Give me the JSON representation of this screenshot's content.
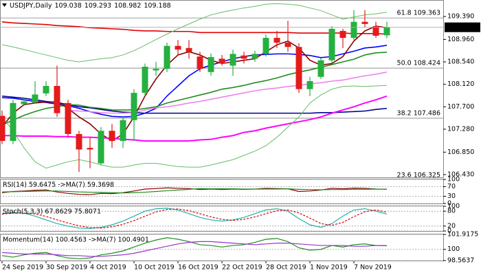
{
  "chart_data": [
    {
      "type": "candlestick",
      "title": "USDJPY,Daily",
      "categories": [
        "24 Sep 2019",
        null,
        null,
        null,
        "30 Sep 2019",
        null,
        null,
        null,
        "4 Oct 2019",
        null,
        null,
        null,
        "10 Oct 2019",
        null,
        null,
        null,
        "16 Oct 2019",
        null,
        null,
        null,
        "22 Oct 2019",
        null,
        null,
        null,
        "28 Oct 2019",
        null,
        null,
        null,
        "1 Nov 2019",
        null,
        null,
        null,
        "7 Nov 2019",
        null,
        null,
        null
      ],
      "open": [
        107.53,
        107.06,
        107.75,
        107.78,
        107.95,
        108.09,
        107.77,
        107.19,
        106.93,
        106.64,
        107.25,
        107.06,
        107.45,
        107.96,
        108.38,
        108.41,
        108.84,
        108.8,
        108.64,
        108.35,
        108.6,
        108.47,
        108.66,
        108.6,
        108.69,
        108.99,
        108.9,
        108.82,
        108.03,
        108.26,
        108.57,
        109.12,
        108.99,
        109.29,
        109.21,
        109.038
      ],
      "high": [
        107.63,
        107.83,
        107.86,
        108.18,
        108.18,
        108.47,
        107.83,
        107.25,
        107.12,
        107.32,
        107.38,
        107.51,
        108.03,
        108.51,
        108.54,
        108.9,
        108.95,
        108.95,
        108.73,
        108.7,
        108.67,
        108.77,
        108.73,
        108.75,
        109.05,
        109.12,
        109.31,
        108.89,
        108.26,
        108.61,
        109.21,
        109.16,
        109.51,
        109.51,
        109.29,
        109.293
      ],
      "low": [
        107.0,
        107.0,
        107.72,
        107.76,
        107.9,
        107.51,
        107.12,
        106.48,
        106.55,
        106.61,
        106.93,
        106.93,
        107.06,
        107.9,
        108.28,
        108.35,
        108.67,
        108.6,
        108.35,
        108.28,
        108.47,
        108.28,
        108.51,
        108.54,
        108.64,
        108.8,
        108.73,
        107.96,
        107.9,
        108.22,
        108.51,
        108.8,
        108.95,
        109.18,
        108.99,
        108.982
      ],
      "close": [
        107.06,
        107.77,
        107.8,
        107.93,
        108.09,
        107.58,
        107.19,
        106.9,
        106.9,
        107.25,
        107.06,
        107.45,
        107.96,
        108.45,
        108.41,
        108.84,
        108.77,
        108.73,
        108.41,
        108.63,
        108.51,
        108.69,
        108.6,
        108.69,
        108.99,
        108.9,
        108.82,
        108.03,
        108.18,
        108.57,
        109.16,
        108.99,
        109.29,
        109.25,
        109.03,
        109.188
      ],
      "up_color": "#25b040",
      "down_color": "#e31b1b",
      "series": [
        {
          "color": "#e00000",
          "width": 1.6,
          "values": [
            109.29,
            109.27,
            109.26,
            109.25,
            109.24,
            109.22,
            109.21,
            109.2,
            109.18,
            109.17,
            109.16,
            109.15,
            109.13,
            109.12,
            109.12,
            109.11,
            109.11,
            109.11,
            109.09,
            109.09,
            109.09,
            109.09,
            109.09,
            109.09,
            109.09,
            109.09,
            109.09,
            109.08,
            109.08,
            109.08,
            109.08,
            109.08,
            109.07,
            109.07,
            109.07,
            109.06
          ]
        },
        {
          "color": "#00008b",
          "width": 1.6,
          "values": [
            107.9,
            107.88,
            107.86,
            107.83,
            107.8,
            107.78,
            107.74,
            107.7,
            107.68,
            107.65,
            107.62,
            107.6,
            107.59,
            107.58,
            107.58,
            107.58,
            107.58,
            107.58,
            107.58,
            107.58,
            107.58,
            107.58,
            107.58,
            107.58,
            107.58,
            107.58,
            107.58,
            107.58,
            107.58,
            107.59,
            107.59,
            107.6,
            107.61,
            107.62,
            107.65,
            107.67
          ]
        },
        {
          "color": "#0000ff",
          "width": 1.6,
          "values": [
            107.87,
            107.86,
            107.83,
            107.8,
            107.78,
            107.75,
            107.72,
            107.67,
            107.61,
            107.56,
            107.52,
            107.51,
            107.52,
            107.58,
            107.67,
            107.9,
            108.09,
            108.28,
            108.41,
            108.48,
            108.54,
            108.6,
            108.64,
            108.67,
            108.68,
            108.69,
            108.69,
            108.68,
            108.66,
            108.62,
            108.64,
            108.69,
            108.74,
            108.8,
            108.82,
            108.85
          ]
        },
        {
          "color": "#1e8c1e",
          "width": 1.6,
          "values": [
            107.36,
            107.45,
            107.54,
            107.61,
            107.67,
            107.7,
            107.74,
            107.73,
            107.69,
            107.67,
            107.64,
            107.64,
            107.64,
            107.67,
            107.7,
            107.77,
            107.82,
            107.87,
            107.92,
            107.97,
            108.03,
            108.06,
            108.1,
            108.15,
            108.19,
            108.24,
            108.3,
            108.35,
            108.39,
            108.44,
            108.49,
            108.54,
            108.59,
            108.67,
            108.71,
            108.72
          ]
        },
        {
          "color": "#8b0000",
          "width": 1.6,
          "values": [
            107.32,
            107.58,
            107.74,
            107.77,
            107.79,
            107.79,
            107.67,
            107.51,
            107.38,
            107.19,
            107.06,
            107.19,
            107.51,
            107.9,
            108.22,
            108.48,
            108.67,
            108.73,
            108.67,
            108.57,
            108.51,
            108.54,
            108.57,
            108.6,
            108.73,
            108.86,
            108.93,
            108.8,
            108.57,
            108.48,
            108.51,
            108.64,
            108.93,
            109.12,
            109.21,
            109.18
          ]
        },
        {
          "color": "#ff00ff",
          "width": 2,
          "values": [
            107.16,
            107.16,
            107.15,
            107.15,
            107.15,
            107.14,
            107.14,
            107.13,
            107.13,
            107.12,
            107.11,
            107.09,
            107.08,
            107.06,
            107.06,
            107.06,
            107.06,
            107.06,
            107.08,
            107.09,
            107.13,
            107.16,
            107.22,
            107.25,
            107.3,
            107.34,
            107.38,
            107.42,
            107.46,
            107.51,
            107.58,
            107.64,
            107.7,
            107.77,
            107.83,
            107.9
          ]
        },
        {
          "color": "#ee82ee",
          "width": 1.6,
          "values": [
            null,
            null,
            null,
            null,
            null,
            null,
            107.64,
            107.62,
            107.61,
            107.59,
            107.58,
            107.58,
            107.59,
            107.64,
            107.68,
            107.7,
            107.73,
            107.77,
            107.8,
            107.84,
            107.88,
            107.92,
            107.96,
            108.0,
            108.03,
            108.05,
            108.08,
            108.1,
            108.13,
            108.15,
            108.18,
            108.2,
            108.24,
            108.28,
            108.31,
            108.35
          ]
        },
        {
          "color": "#66bb66",
          "width": 1,
          "values": [
            108.86,
            108.82,
            108.77,
            108.72,
            108.67,
            108.62,
            108.57,
            108.54,
            108.57,
            108.6,
            108.62,
            108.67,
            108.75,
            108.85,
            108.96,
            109.06,
            109.16,
            109.25,
            109.34,
            109.42,
            109.47,
            109.51,
            109.55,
            109.58,
            109.62,
            109.63,
            109.62,
            109.6,
            109.55,
            109.5,
            109.42,
            109.34,
            109.38,
            109.42,
            109.44,
            109.47
          ]
        },
        {
          "color": "#66bb66",
          "width": 1,
          "values": [
            107.51,
            107.25,
            106.93,
            106.67,
            106.55,
            106.61,
            106.67,
            106.71,
            106.67,
            106.61,
            106.57,
            106.57,
            106.61,
            106.64,
            106.64,
            106.61,
            106.58,
            106.57,
            106.57,
            106.61,
            106.66,
            106.71,
            106.79,
            106.87,
            106.97,
            107.13,
            107.32,
            107.51,
            107.77,
            107.92,
            108.03,
            108.08,
            108.09,
            108.08,
            108.09,
            108.1
          ]
        }
      ],
      "fib_levels": [
        {
          "value": 109.363,
          "label": "61.8 109.363"
        },
        {
          "value": 108.424,
          "label": "50.0 108.424"
        },
        {
          "value": 107.486,
          "label": "38.2 107.486"
        },
        {
          "value": 106.325,
          "label": "23.6 106.325"
        }
      ],
      "ylim": [
        106.378,
        109.686
      ],
      "yticks": [
        {
          "value": 109.39,
          "label": "109.390"
        },
        {
          "value": 108.96,
          "label": "108.960"
        },
        {
          "value": 108.54,
          "label": "108.540"
        },
        {
          "value": 108.12,
          "label": "108.120"
        },
        {
          "value": 107.7,
          "label": "107.700"
        },
        {
          "value": 107.28,
          "label": "107.280"
        },
        {
          "value": 106.85,
          "label": "106.850"
        },
        {
          "value": 106.43,
          "label": "106.430"
        }
      ]
    },
    {
      "type": "line",
      "title": "RSI(14) 59.6475 ->MA(7) 59.3698",
      "series": [
        {
          "color": "#8b0000",
          "values": [
            45,
            50,
            52,
            55,
            56,
            48,
            42,
            38,
            37,
            42,
            41,
            45,
            52,
            60,
            62,
            65,
            63,
            62,
            58,
            60,
            58,
            60,
            59,
            60,
            63,
            62,
            61,
            50,
            52,
            56,
            63,
            61,
            64,
            63,
            60,
            59.6475
          ]
        },
        {
          "color": "#1e8c1e",
          "values": [
            48,
            49,
            50,
            51,
            52,
            52,
            50,
            48,
            47,
            46,
            45,
            44,
            45,
            47,
            50,
            53,
            56,
            59,
            62,
            61,
            61,
            61,
            60,
            60,
            60,
            60,
            61,
            59,
            58,
            57,
            58,
            58,
            59,
            59,
            60,
            59.3698
          ]
        }
      ],
      "ylim": [
        0,
        100
      ],
      "yticks": [
        100,
        70,
        30,
        0
      ]
    },
    {
      "type": "line",
      "title": "Stoch(5,3,3) 67.8629 75.8071",
      "series": [
        {
          "color": "#20b2aa",
          "values": [
            70,
            75,
            72,
            60,
            45,
            30,
            20,
            12,
            10,
            15,
            25,
            40,
            60,
            80,
            90,
            92,
            85,
            70,
            55,
            45,
            40,
            45,
            55,
            70,
            85,
            90,
            80,
            50,
            25,
            15,
            30,
            60,
            85,
            90,
            80,
            67.8629
          ]
        },
        {
          "color": "#e00000",
          "style": "dashed",
          "values": [
            68,
            72,
            72,
            69,
            59,
            45,
            32,
            21,
            14,
            12,
            17,
            27,
            42,
            60,
            77,
            87,
            89,
            82,
            70,
            57,
            47,
            43,
            47,
            57,
            70,
            82,
            85,
            73,
            52,
            30,
            23,
            35,
            58,
            78,
            85,
            75.8071
          ]
        }
      ],
      "ylim": [
        0,
        100
      ],
      "yticks": [
        100,
        80,
        20,
        0
      ]
    },
    {
      "type": "line",
      "title": "Momentum(14) 100.4563 ->MA(7) 100.4901",
      "series": [
        {
          "color": "#1e8c1e",
          "values": [
            99.2,
            99.0,
            99.3,
            99.5,
            99.6,
            99.2,
            98.9,
            98.8,
            98.9,
            99.3,
            99.5,
            99.8,
            100.3,
            100.8,
            101.2,
            101.5,
            101.3,
            101.0,
            100.6,
            100.5,
            100.3,
            100.5,
            100.6,
            100.9,
            101.3,
            101.4,
            101.0,
            100.2,
            99.9,
            100.0,
            100.5,
            100.3,
            100.6,
            100.7,
            100.5,
            100.4563
          ]
        },
        {
          "color": "#9932cc",
          "values": [
            99.6,
            99.5,
            99.4,
            99.4,
            99.4,
            99.3,
            99.2,
            99.2,
            99.1,
            99.1,
            99.2,
            99.3,
            99.5,
            99.8,
            100.1,
            100.4,
            100.7,
            100.9,
            101.0,
            101.0,
            100.9,
            100.8,
            100.7,
            100.6,
            100.7,
            100.8,
            100.8,
            100.7,
            100.6,
            100.5,
            100.5,
            100.5,
            100.4,
            100.4,
            100.5,
            100.4901
          ]
        }
      ],
      "ylim": [
        98.5637,
        101.9175
      ],
      "yticks": [
        101.9175,
        100,
        98.5637
      ]
    }
  ]
}
